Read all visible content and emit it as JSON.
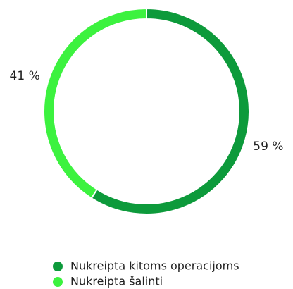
{
  "chart_data": {
    "type": "donut",
    "categories": [
      "Nukreipta kitoms operacijoms",
      "Nukreipta šalinti"
    ],
    "values": [
      59,
      41
    ],
    "value_labels": [
      "59 %",
      "41 %"
    ],
    "colors": [
      "#0d9a3b",
      "#3cf23f"
    ]
  }
}
